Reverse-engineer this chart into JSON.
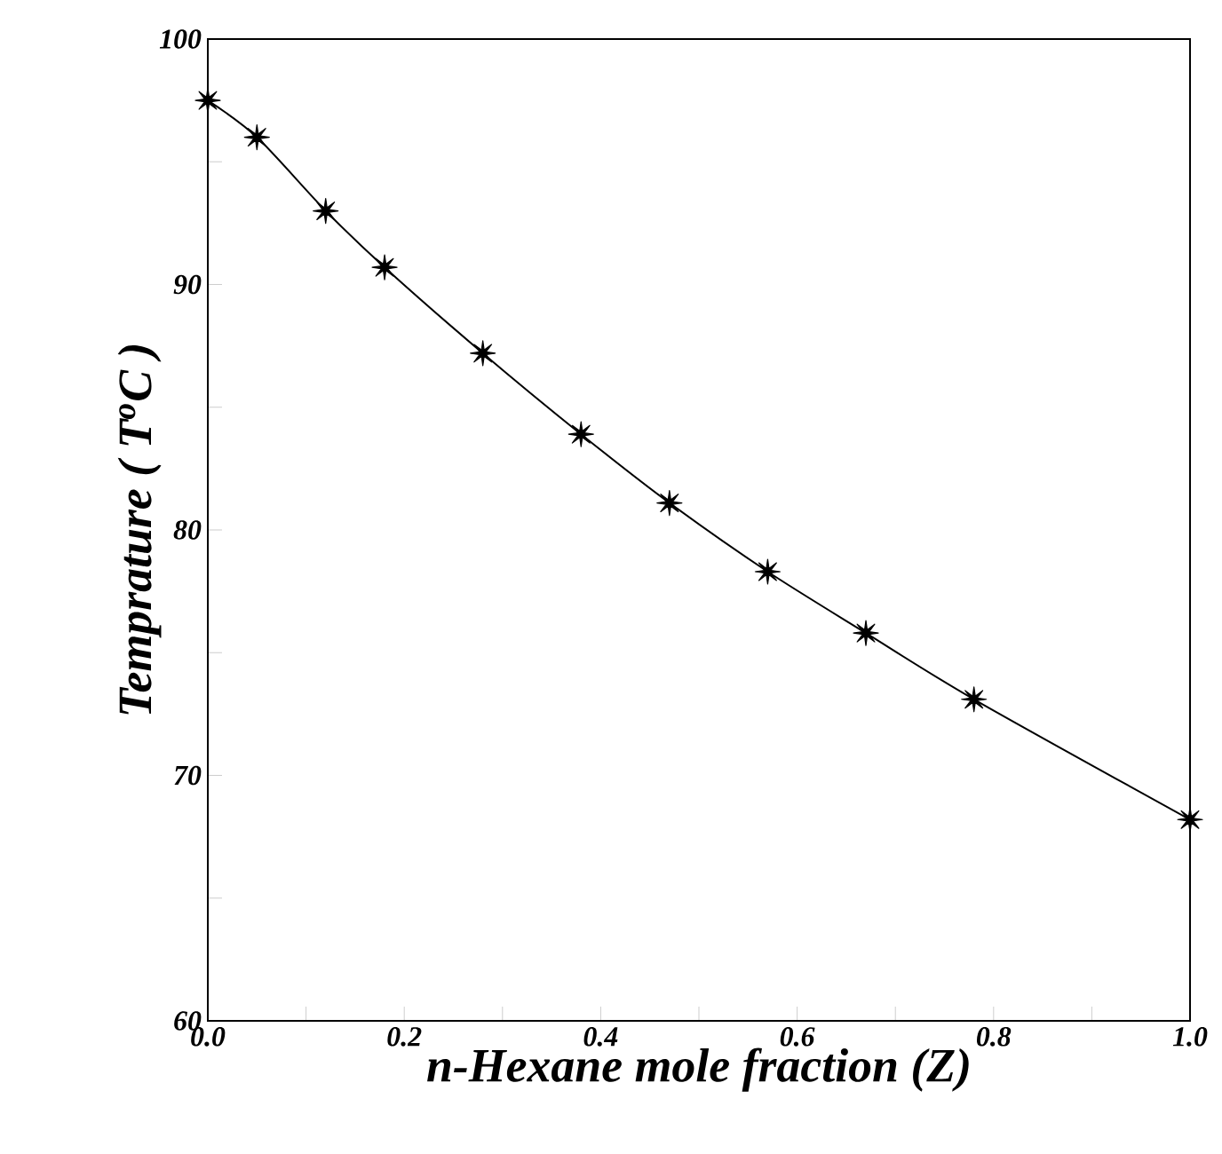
{
  "chart_data": {
    "type": "line",
    "xlabel": "n-Hexane mole fraction (Z)",
    "ylabel": "Temprature ( T$^{o}$C )",
    "x": [
      0.0,
      0.05,
      0.12,
      0.18,
      0.28,
      0.38,
      0.47,
      0.57,
      0.67,
      0.78,
      1.0
    ],
    "series": [
      {
        "color": "#000000",
        "values": [
          97.5,
          96.0,
          93.0,
          90.7,
          87.2,
          83.9,
          81.1,
          78.3,
          75.8,
          73.1,
          68.2
        ]
      }
    ],
    "xlim": [
      0,
      1
    ],
    "ylim": [
      60,
      100
    ],
    "xticks": [
      {
        "value": 0,
        "label": "0.0"
      },
      {
        "value": 0.1,
        "label": null
      },
      {
        "value": 0.2,
        "label": "0.2"
      },
      {
        "value": 0.3,
        "label": null
      },
      {
        "value": 0.4,
        "label": "0.4"
      },
      {
        "value": 0.5,
        "label": null
      },
      {
        "value": 0.6,
        "label": "0.6"
      },
      {
        "value": 0.7,
        "label": null
      },
      {
        "value": 0.8,
        "label": "0.8"
      },
      {
        "value": 0.9,
        "label": null
      },
      {
        "value": 1,
        "label": "1.0"
      }
    ],
    "yticks": [
      60,
      {
        "value": 65,
        "label": null
      },
      70,
      {
        "value": 75,
        "label": null
      },
      80,
      {
        "value": 85,
        "label": null
      },
      90,
      {
        "value": 95,
        "label": null
      },
      100
    ],
    "marker": "star",
    "line_style": "solid",
    "grid": false
  }
}
